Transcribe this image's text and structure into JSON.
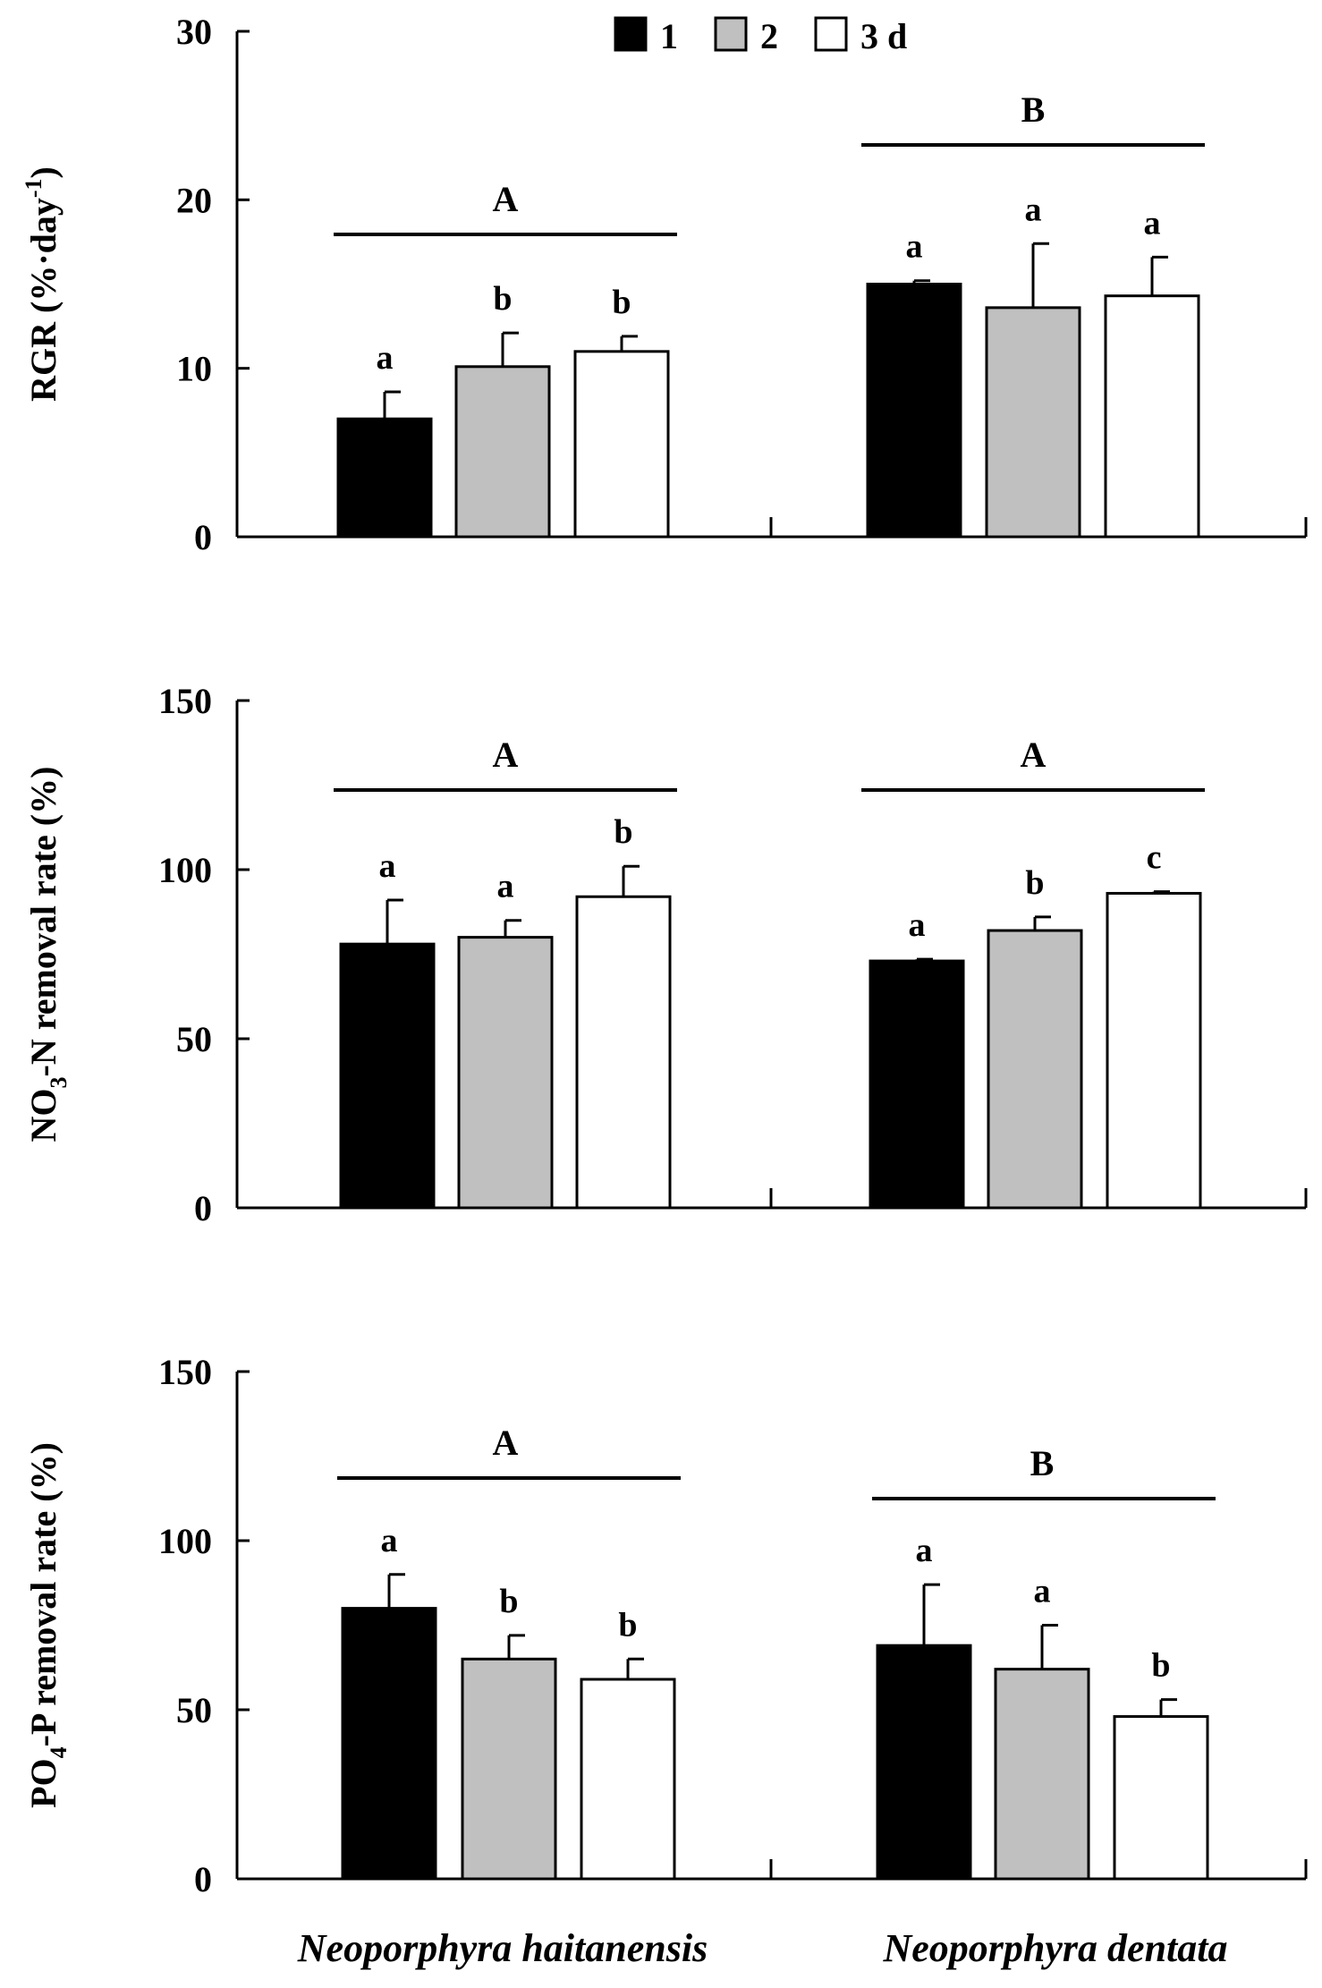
{
  "legend": {
    "items": [
      {
        "label": "1",
        "color": "#000000"
      },
      {
        "label": "2",
        "color": "#c0c0c0"
      },
      {
        "label": "3 d",
        "color": "#ffffff"
      }
    ]
  },
  "species": [
    "Neoporphyra haitanensis",
    "Neoporphyra dentata"
  ],
  "chart_data": [
    {
      "type": "bar",
      "ylabel_parts": [
        "RGR (%·day",
        "-1",
        ")"
      ],
      "ylim": [
        0,
        30
      ],
      "ticks": [
        0,
        10,
        20,
        30
      ],
      "categories": [
        "Neoporphyra haitanensis",
        "Neoporphyra dentata"
      ],
      "series": [
        {
          "name": "1",
          "values": [
            7.0,
            15.0
          ],
          "errors": [
            1.6,
            0.2
          ],
          "letters": [
            "a",
            "a"
          ]
        },
        {
          "name": "2",
          "values": [
            10.1,
            13.6
          ],
          "errors": [
            2.0,
            3.8
          ],
          "letters": [
            "b",
            "a"
          ]
        },
        {
          "name": "3 d",
          "values": [
            11.0,
            14.3
          ],
          "errors": [
            0.9,
            2.3
          ],
          "letters": [
            "b",
            "a"
          ]
        }
      ],
      "group_letters": [
        "A",
        "B"
      ]
    },
    {
      "type": "bar",
      "ylabel_parts": [
        "NO",
        "3",
        "-N removal rate (%)"
      ],
      "ylim": [
        0,
        150
      ],
      "ticks": [
        0,
        50,
        100,
        150
      ],
      "categories": [
        "Neoporphyra haitanensis",
        "Neoporphyra dentata"
      ],
      "series": [
        {
          "name": "1",
          "values": [
            78,
            73
          ],
          "errors": [
            13,
            0.5
          ],
          "letters": [
            "a",
            "a"
          ]
        },
        {
          "name": "2",
          "values": [
            80,
            82
          ],
          "errors": [
            5,
            4
          ],
          "letters": [
            "a",
            "b"
          ]
        },
        {
          "name": "3 d",
          "values": [
            92,
            93
          ],
          "errors": [
            9,
            0.5
          ],
          "letters": [
            "b",
            "c"
          ]
        }
      ],
      "group_letters": [
        "A",
        "A"
      ]
    },
    {
      "type": "bar",
      "ylabel_parts": [
        "PO",
        "4",
        "-P removal rate (%)"
      ],
      "ylim": [
        0,
        150
      ],
      "ticks": [
        0,
        50,
        100,
        150
      ],
      "categories": [
        "Neoporphyra haitanensis",
        "Neoporphyra dentata"
      ],
      "series": [
        {
          "name": "1",
          "values": [
            80,
            69
          ],
          "errors": [
            10,
            18
          ],
          "letters": [
            "a",
            "a"
          ]
        },
        {
          "name": "2",
          "values": [
            65,
            62
          ],
          "errors": [
            7,
            13
          ],
          "letters": [
            "b",
            "a"
          ]
        },
        {
          "name": "3 d",
          "values": [
            59,
            48
          ],
          "errors": [
            6,
            5
          ],
          "letters": [
            "b",
            "b"
          ]
        }
      ],
      "group_letters": [
        "A",
        "B"
      ]
    }
  ]
}
